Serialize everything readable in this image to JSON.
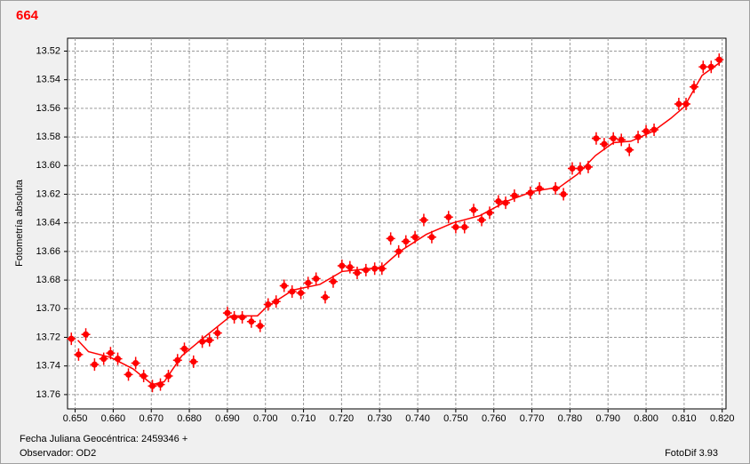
{
  "chart_data": {
    "type": "scatter",
    "title": "664",
    "y_label": "Fotometría absoluta",
    "footer": {
      "date": "Fecha Juliana Geocéntrica: 2459346 +",
      "observer": "Observador: OD2",
      "software": "FotoDif 3.93"
    },
    "xlim": [
      0.648,
      0.821
    ],
    "ylim": [
      13.77,
      13.511
    ],
    "grid": true,
    "xticks": [
      {
        "value": 0.65,
        "label": "0.650"
      },
      {
        "value": 0.66,
        "label": "0.660"
      },
      {
        "value": 0.67,
        "label": "0.670"
      },
      {
        "value": 0.68,
        "label": "0.680"
      },
      {
        "value": 0.69,
        "label": "0.690"
      },
      {
        "value": 0.7,
        "label": "0.700"
      },
      {
        "value": 0.71,
        "label": "0.710"
      },
      {
        "value": 0.72,
        "label": "0.720"
      },
      {
        "value": 0.73,
        "label": "0.730"
      },
      {
        "value": 0.74,
        "label": "0.740"
      },
      {
        "value": 0.75,
        "label": "0.750"
      },
      {
        "value": 0.76,
        "label": "0.760"
      },
      {
        "value": 0.77,
        "label": "0.770"
      },
      {
        "value": 0.78,
        "label": "0.780"
      },
      {
        "value": 0.79,
        "label": "0.790"
      },
      {
        "value": 0.8,
        "label": "0.800"
      },
      {
        "value": 0.81,
        "label": "0.810"
      },
      {
        "value": 0.82,
        "label": "0.820"
      }
    ],
    "yticks": [
      13.52,
      13.54,
      13.56,
      13.58,
      {
        "value": 13.6,
        "label": "13.60"
      },
      13.62,
      13.64,
      13.66,
      13.68,
      {
        "value": 13.7,
        "label": "13.70"
      },
      13.72,
      13.74,
      13.76
    ],
    "series": [
      {
        "type": "scatter",
        "color": "#ff0000",
        "x": [
          0.649,
          0.6509,
          0.6528,
          0.6551,
          0.6575,
          0.6593,
          0.6612,
          0.664,
          0.6659,
          0.668,
          0.6703,
          0.6724,
          0.6745,
          0.6769,
          0.6787,
          0.6811,
          0.6834,
          0.6853,
          0.6874,
          0.69,
          0.6918,
          0.6939,
          0.6963,
          0.6986,
          0.7007,
          0.7028,
          0.7049,
          0.707,
          0.7093,
          0.7112,
          0.7133,
          0.7157,
          0.7178,
          0.7201,
          0.7222,
          0.7241,
          0.7264,
          0.7287,
          0.7306,
          0.7329,
          0.735,
          0.7369,
          0.7393,
          0.7416,
          0.7437,
          0.7481,
          0.75,
          0.7523,
          0.7547,
          0.7568,
          0.7589,
          0.7612,
          0.7631,
          0.7654,
          0.7696,
          0.772,
          0.7762,
          0.7783,
          0.7806,
          0.7827,
          0.7848,
          0.7869,
          0.789,
          0.7914,
          0.7935,
          0.7956,
          0.7979,
          0.8,
          0.8021,
          0.8086,
          0.8105,
          0.8126,
          0.815,
          0.8171,
          0.8192
        ],
        "values": [
          13.721,
          13.732,
          13.718,
          13.739,
          13.735,
          13.731,
          13.735,
          13.746,
          13.738,
          13.747,
          13.754,
          13.753,
          13.747,
          13.736,
          13.728,
          13.737,
          13.723,
          13.722,
          13.717,
          13.703,
          13.706,
          13.706,
          13.709,
          13.712,
          13.697,
          13.695,
          13.684,
          13.688,
          13.689,
          13.682,
          13.679,
          13.692,
          13.681,
          13.67,
          13.671,
          13.675,
          13.673,
          13.672,
          13.672,
          13.651,
          13.66,
          13.653,
          13.65,
          13.638,
          13.65,
          13.636,
          13.643,
          13.643,
          13.631,
          13.638,
          13.633,
          13.625,
          13.626,
          13.621,
          13.619,
          13.616,
          13.616,
          13.62,
          13.602,
          13.602,
          13.601,
          13.581,
          13.585,
          13.581,
          13.582,
          13.589,
          13.58,
          13.576,
          13.575,
          13.557,
          13.557,
          13.545,
          13.531,
          13.531,
          13.526
        ]
      },
      {
        "type": "line",
        "color": "#ff0000",
        "x": [
          0.6507,
          0.6535,
          0.6593,
          0.6652,
          0.6703,
          0.6734,
          0.678,
          0.6839,
          0.6909,
          0.6979,
          0.7002,
          0.7072,
          0.7143,
          0.7201,
          0.7306,
          0.7353,
          0.7423,
          0.7493,
          0.7563,
          0.7633,
          0.7703,
          0.7773,
          0.782,
          0.7867,
          0.7914,
          0.796,
          0.8019,
          0.8065,
          0.81,
          0.8147,
          0.8199
        ],
        "values": [
          13.722,
          13.73,
          13.734,
          13.742,
          13.753,
          13.751,
          13.733,
          13.72,
          13.705,
          13.705,
          13.699,
          13.687,
          13.683,
          13.674,
          13.671,
          13.66,
          13.648,
          13.64,
          13.635,
          13.625,
          13.618,
          13.615,
          13.606,
          13.593,
          13.584,
          13.583,
          13.576,
          13.567,
          13.559,
          13.537,
          13.527
        ]
      }
    ]
  }
}
